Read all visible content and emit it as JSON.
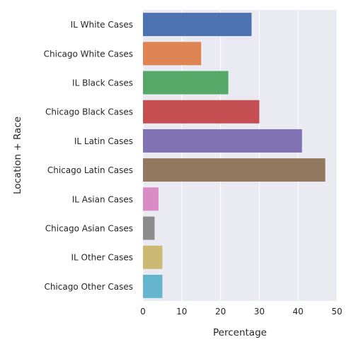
{
  "chart_data": {
    "type": "bar",
    "orientation": "horizontal",
    "categories": [
      "IL White Cases",
      "Chicago White Cases",
      "IL Black Cases",
      "Chicago Black Cases",
      "IL Latin Cases",
      "Chicago Latin Cases",
      "IL Asian Cases",
      "Chicago Asian Cases",
      "IL Other Cases",
      "Chicago Other Cases"
    ],
    "values": [
      28,
      15,
      22,
      30,
      41,
      47,
      4,
      3,
      5,
      5
    ],
    "colors": [
      "#4c72b0",
      "#dd8452",
      "#55a868",
      "#c44e52",
      "#8172b3",
      "#937860",
      "#da8bc3",
      "#8c8c8c",
      "#ccb974",
      "#64b5cd"
    ],
    "xlabel": "Percentage",
    "ylabel": "Location + Race",
    "xlim": [
      0,
      50
    ],
    "xticks": [
      0,
      10,
      20,
      30,
      40,
      50
    ],
    "grid": true,
    "background": "#eaeaf2",
    "legend": "none"
  }
}
